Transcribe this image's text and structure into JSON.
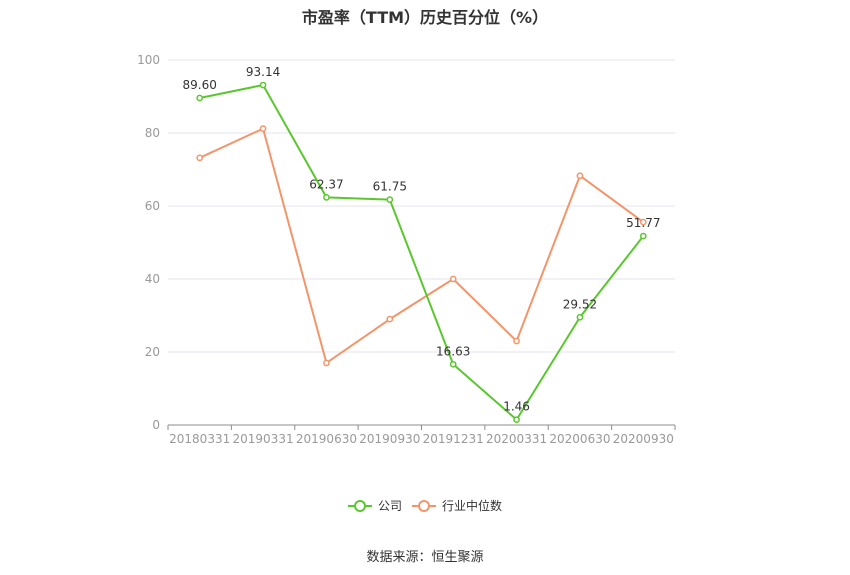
{
  "title": "市盈率（TTM）历史百分位（%）",
  "source": "数据来源：恒生聚源",
  "colors": {
    "company": "#5ac72e",
    "industry": "#f2956b",
    "grid": "#e6e6ee",
    "axis": "#8c8c8c",
    "text": "#999999"
  },
  "chart_data": {
    "type": "line",
    "categories": [
      "20180331",
      "20190331",
      "20190630",
      "20190930",
      "20191231",
      "20200331",
      "20200630",
      "20200930"
    ],
    "ylim": [
      0,
      100
    ],
    "yticks": [
      0,
      20,
      40,
      60,
      80,
      100
    ],
    "grid": true,
    "legend_position": "bottom-center",
    "series": [
      {
        "name": "公司",
        "values": [
          89.6,
          93.14,
          62.37,
          61.75,
          16.63,
          1.46,
          29.52,
          51.77
        ],
        "labels": [
          "89.60",
          "93.14",
          "62.37",
          "61.75",
          "16.63",
          "1.46",
          "29.52",
          "51.77"
        ]
      },
      {
        "name": "行业中位数",
        "values": [
          73.2,
          81.2,
          17.0,
          29.0,
          40.0,
          23.0,
          68.3,
          55.6
        ]
      }
    ]
  }
}
